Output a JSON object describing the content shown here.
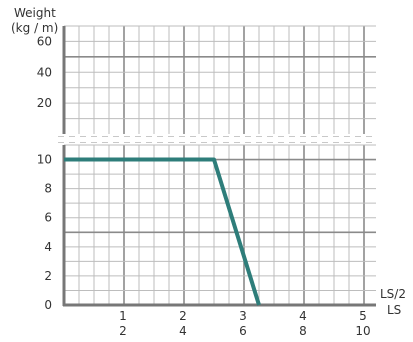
{
  "chart_data": {
    "type": "line",
    "ylabel_line1": "Weight",
    "ylabel_line2": "(kg / m)",
    "xlabel_top": "LS/2",
    "xlabel_bottom": "LS",
    "upper_y_ticks": [
      "60",
      "40",
      "20"
    ],
    "lower_y_ticks": [
      "10",
      "8",
      "6",
      "4",
      "2",
      "0"
    ],
    "x_ticks_top": [
      "1",
      "2",
      "3",
      "4",
      "5"
    ],
    "x_ticks_bottom": [
      "2",
      "4",
      "6",
      "8",
      "10"
    ],
    "upper_ylim": [
      0,
      70
    ],
    "lower_ylim": [
      0,
      11
    ],
    "xlim": [
      0,
      5.2
    ],
    "broken_axis": true,
    "grid": true,
    "series": [
      {
        "color": "#2e7d7a",
        "x": [
          0,
          2.5,
          3.25
        ],
        "y": [
          10,
          10,
          0
        ]
      }
    ]
  }
}
